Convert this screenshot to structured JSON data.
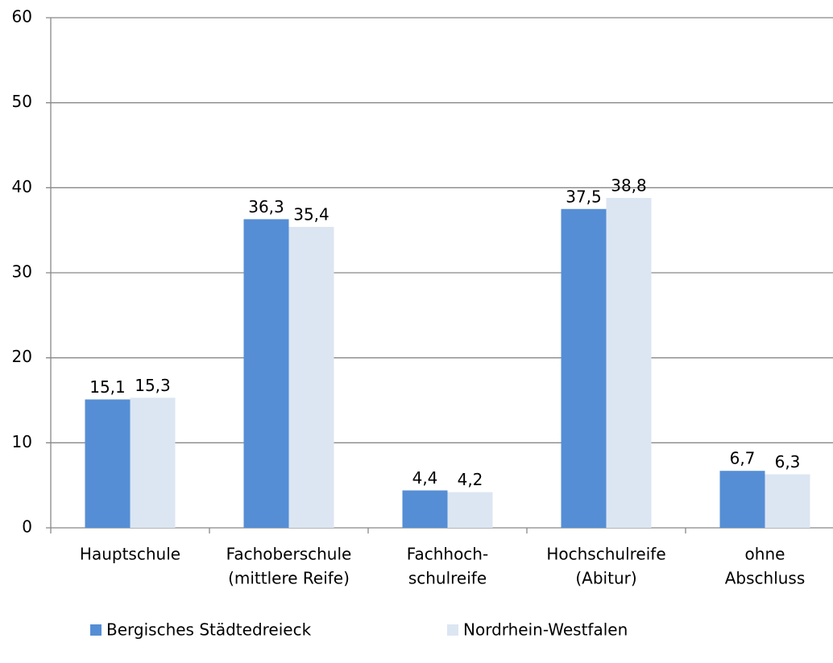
{
  "chart_data": {
    "type": "bar",
    "categories": [
      [
        "Hauptschule"
      ],
      [
        "Fachoberschule",
        "(mittlere Reife)"
      ],
      [
        "Fachhoch-",
        "schulreife"
      ],
      [
        "Hochschulreife",
        "(Abitur)"
      ],
      [
        "ohne",
        "Abschluss"
      ]
    ],
    "series": [
      {
        "name": "Bergisches Städtedreieck",
        "color": "#558ed5",
        "values": [
          15.1,
          36.3,
          4.4,
          37.5,
          6.7
        ],
        "value_labels": [
          "15,1",
          "36,3",
          "4,4",
          "37,5",
          "6,7"
        ]
      },
      {
        "name": "Nordrhein-Westfalen",
        "color": "#dce6f2",
        "values": [
          15.3,
          35.4,
          4.2,
          38.8,
          6.3
        ],
        "value_labels": [
          "15,3",
          "35,4",
          "4,2",
          "38,8",
          "6,3"
        ]
      }
    ],
    "ylim": [
      0,
      60
    ],
    "yticks": [
      0,
      10,
      20,
      30,
      40,
      50,
      60
    ],
    "grid": true,
    "legend": "bottom"
  }
}
